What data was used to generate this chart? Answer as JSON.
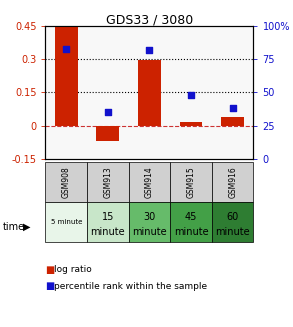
{
  "title": "GDS33 / 3080",
  "samples": [
    "GSM908",
    "GSM913",
    "GSM914",
    "GSM915",
    "GSM916"
  ],
  "log_ratio": [
    0.45,
    -0.07,
    0.295,
    0.015,
    0.04
  ],
  "percentile_rank": [
    83,
    35,
    82,
    48,
    38
  ],
  "left_ylim": [
    -0.15,
    0.45
  ],
  "right_ylim": [
    0,
    100
  ],
  "left_yticks": [
    -0.15,
    0,
    0.15,
    0.3,
    0.45
  ],
  "right_yticks": [
    0,
    25,
    50,
    75,
    100
  ],
  "hlines": [
    0.15,
    0.3
  ],
  "time_labels_top": [
    "",
    "15",
    "30",
    "45",
    "60"
  ],
  "time_labels_bot": [
    "5 minute",
    "minute",
    "minute",
    "minute",
    "minute"
  ],
  "time_colors": [
    "#e8f5e9",
    "#c8e6c9",
    "#66bb6a",
    "#43a047",
    "#2e7d32"
  ],
  "sample_row_color": "#d0d0d0",
  "bar_color": "#cc2200",
  "dot_color": "#1111cc",
  "zero_line_color": "#cc3333",
  "dot_line_color": "#000000",
  "bg_color": "#f8f8f8"
}
